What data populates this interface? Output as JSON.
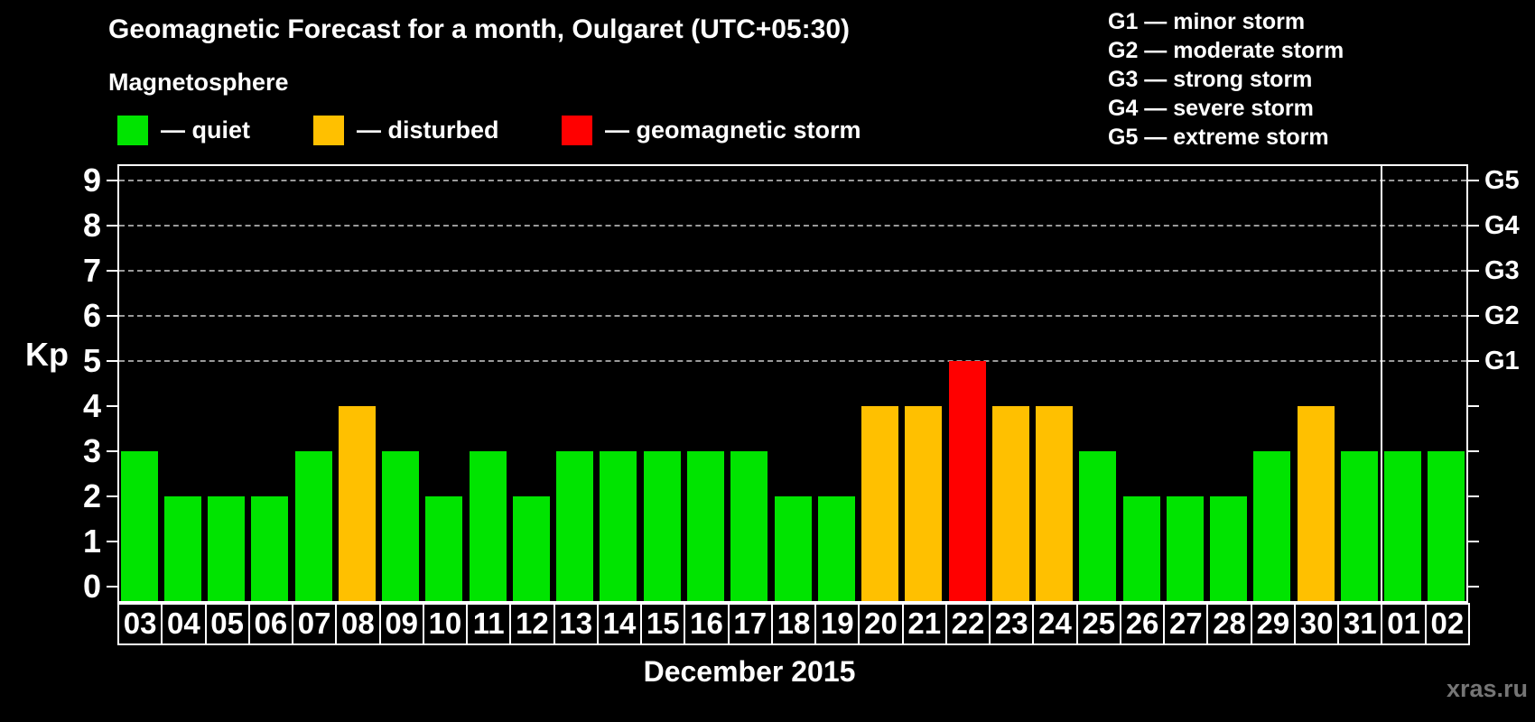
{
  "watermark": {
    "label": "xras.ru",
    "color": "#757575"
  },
  "legend": {
    "title": "Magnetosphere",
    "items": [
      {
        "key": "quiet",
        "label": "— quiet",
        "color": "#00e400"
      },
      {
        "key": "disturbed",
        "label": "— disturbed",
        "color": "#ffc000"
      },
      {
        "key": "storm",
        "label": "— geomagnetic storm",
        "color": "#ff0000"
      }
    ]
  },
  "g_scale_legend": [
    "G1 — minor storm",
    "G2 — moderate storm",
    "G3 — strong storm",
    "G4 — severe storm",
    "G5 — extreme storm"
  ],
  "chart_data": {
    "type": "bar",
    "title": "Geomagnetic Forecast for a month, Oulgaret (UTC+05:30)",
    "subtitle": "Magnetosphere",
    "xlabel": "December 2015",
    "ylabel": "Kp",
    "ylim": [
      0,
      9
    ],
    "yticks": [
      0,
      1,
      2,
      3,
      4,
      5,
      6,
      7,
      8,
      9
    ],
    "grid": "horizontal dashed lines at Kp 5-9 only",
    "legend_position": "top-left swatches; G-scale text top-right",
    "right_axis": {
      "labels": [
        "G1",
        "G2",
        "G3",
        "G4",
        "G5"
      ],
      "at_kp": [
        5,
        6,
        7,
        8,
        9
      ]
    },
    "categories": [
      "03",
      "04",
      "05",
      "06",
      "07",
      "08",
      "09",
      "10",
      "11",
      "12",
      "13",
      "14",
      "15",
      "16",
      "17",
      "18",
      "19",
      "20",
      "21",
      "22",
      "23",
      "24",
      "25",
      "26",
      "27",
      "28",
      "29",
      "30",
      "31",
      "01",
      "02"
    ],
    "values": [
      3,
      2,
      2,
      2,
      3,
      4,
      3,
      2,
      3,
      2,
      3,
      3,
      3,
      3,
      3,
      2,
      2,
      4,
      4,
      5,
      4,
      4,
      3,
      2,
      2,
      2,
      3,
      4,
      3,
      3,
      3
    ],
    "status": [
      "quiet",
      "quiet",
      "quiet",
      "quiet",
      "quiet",
      "disturbed",
      "quiet",
      "quiet",
      "quiet",
      "quiet",
      "quiet",
      "quiet",
      "quiet",
      "quiet",
      "quiet",
      "quiet",
      "quiet",
      "disturbed",
      "disturbed",
      "storm",
      "disturbed",
      "disturbed",
      "quiet",
      "quiet",
      "quiet",
      "quiet",
      "quiet",
      "disturbed",
      "quiet",
      "quiet",
      "quiet"
    ],
    "status_colors": {
      "quiet": "#00e400",
      "disturbed": "#ffc000",
      "storm": "#ff0000"
    },
    "month_boundary_after": "31"
  }
}
